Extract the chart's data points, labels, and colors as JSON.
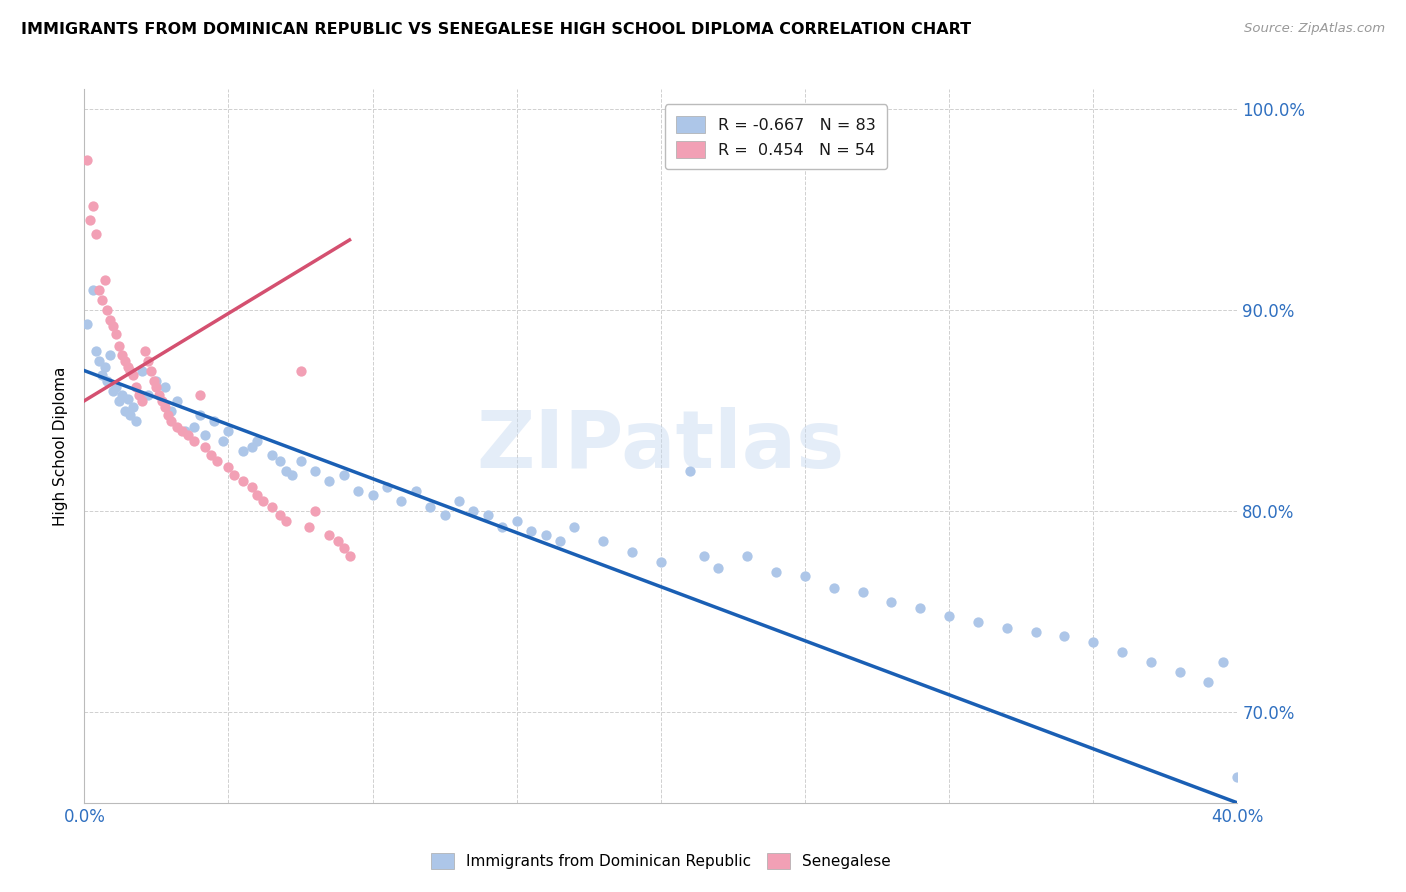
{
  "title": "IMMIGRANTS FROM DOMINICAN REPUBLIC VS SENEGALESE HIGH SCHOOL DIPLOMA CORRELATION CHART",
  "source": "Source: ZipAtlas.com",
  "ylabel": "High School Diploma",
  "blue_color": "#adc6e8",
  "pink_color": "#f2a0b5",
  "blue_line_color": "#1a5fb4",
  "pink_line_color": "#d45070",
  "watermark": "ZIPatlas",
  "xlim": [
    0.0,
    0.4
  ],
  "ylim": [
    0.655,
    1.01
  ],
  "yticks": [
    0.7,
    0.8,
    0.9,
    1.0
  ],
  "ytick_labels": [
    "70.0%",
    "80.0%",
    "90.0%",
    "100.0%"
  ],
  "xticks": [
    0.0,
    0.05,
    0.1,
    0.15,
    0.2,
    0.25,
    0.3,
    0.35,
    0.4
  ],
  "xtick_labels": [
    "0.0%",
    "",
    "",
    "",
    "",
    "",
    "",
    "",
    "40.0%"
  ],
  "blue_scatter_x": [
    0.001,
    0.003,
    0.004,
    0.005,
    0.006,
    0.007,
    0.008,
    0.009,
    0.01,
    0.011,
    0.012,
    0.013,
    0.014,
    0.015,
    0.016,
    0.017,
    0.018,
    0.02,
    0.022,
    0.025,
    0.028,
    0.03,
    0.032,
    0.035,
    0.038,
    0.04,
    0.042,
    0.045,
    0.048,
    0.05,
    0.055,
    0.058,
    0.06,
    0.065,
    0.068,
    0.07,
    0.072,
    0.075,
    0.08,
    0.085,
    0.09,
    0.095,
    0.1,
    0.105,
    0.11,
    0.115,
    0.12,
    0.125,
    0.13,
    0.135,
    0.14,
    0.145,
    0.15,
    0.155,
    0.16,
    0.165,
    0.17,
    0.18,
    0.19,
    0.2,
    0.21,
    0.215,
    0.22,
    0.23,
    0.24,
    0.25,
    0.26,
    0.27,
    0.28,
    0.29,
    0.3,
    0.31,
    0.32,
    0.33,
    0.34,
    0.35,
    0.36,
    0.37,
    0.38,
    0.39,
    0.4,
    0.395
  ],
  "blue_scatter_y": [
    0.893,
    0.91,
    0.88,
    0.875,
    0.868,
    0.872,
    0.865,
    0.878,
    0.86,
    0.862,
    0.855,
    0.858,
    0.85,
    0.856,
    0.848,
    0.852,
    0.845,
    0.87,
    0.858,
    0.865,
    0.862,
    0.85,
    0.855,
    0.84,
    0.842,
    0.848,
    0.838,
    0.845,
    0.835,
    0.84,
    0.83,
    0.832,
    0.835,
    0.828,
    0.825,
    0.82,
    0.818,
    0.825,
    0.82,
    0.815,
    0.818,
    0.81,
    0.808,
    0.812,
    0.805,
    0.81,
    0.802,
    0.798,
    0.805,
    0.8,
    0.798,
    0.792,
    0.795,
    0.79,
    0.788,
    0.785,
    0.792,
    0.785,
    0.78,
    0.775,
    0.82,
    0.778,
    0.772,
    0.778,
    0.77,
    0.768,
    0.762,
    0.76,
    0.755,
    0.752,
    0.748,
    0.745,
    0.742,
    0.74,
    0.738,
    0.735,
    0.73,
    0.725,
    0.72,
    0.715,
    0.668,
    0.725
  ],
  "pink_scatter_x": [
    0.001,
    0.002,
    0.003,
    0.004,
    0.005,
    0.006,
    0.007,
    0.008,
    0.009,
    0.01,
    0.011,
    0.012,
    0.013,
    0.014,
    0.015,
    0.016,
    0.017,
    0.018,
    0.019,
    0.02,
    0.021,
    0.022,
    0.023,
    0.024,
    0.025,
    0.026,
    0.027,
    0.028,
    0.029,
    0.03,
    0.032,
    0.034,
    0.036,
    0.038,
    0.04,
    0.042,
    0.044,
    0.046,
    0.05,
    0.052,
    0.055,
    0.058,
    0.06,
    0.062,
    0.065,
    0.068,
    0.07,
    0.075,
    0.078,
    0.08,
    0.085,
    0.088,
    0.09,
    0.092
  ],
  "pink_scatter_y": [
    0.975,
    0.945,
    0.952,
    0.938,
    0.91,
    0.905,
    0.915,
    0.9,
    0.895,
    0.892,
    0.888,
    0.882,
    0.878,
    0.875,
    0.872,
    0.87,
    0.868,
    0.862,
    0.858,
    0.855,
    0.88,
    0.875,
    0.87,
    0.865,
    0.862,
    0.858,
    0.855,
    0.852,
    0.848,
    0.845,
    0.842,
    0.84,
    0.838,
    0.835,
    0.858,
    0.832,
    0.828,
    0.825,
    0.822,
    0.818,
    0.815,
    0.812,
    0.808,
    0.805,
    0.802,
    0.798,
    0.795,
    0.87,
    0.792,
    0.8,
    0.788,
    0.785,
    0.782,
    0.778
  ],
  "blue_trendline_x0": 0.0,
  "blue_trendline_y0": 0.87,
  "blue_trendline_x1": 0.4,
  "blue_trendline_y1": 0.655,
  "pink_trendline_x0": 0.0,
  "pink_trendline_y0": 0.855,
  "pink_trendline_x1": 0.092,
  "pink_trendline_y1": 0.935
}
